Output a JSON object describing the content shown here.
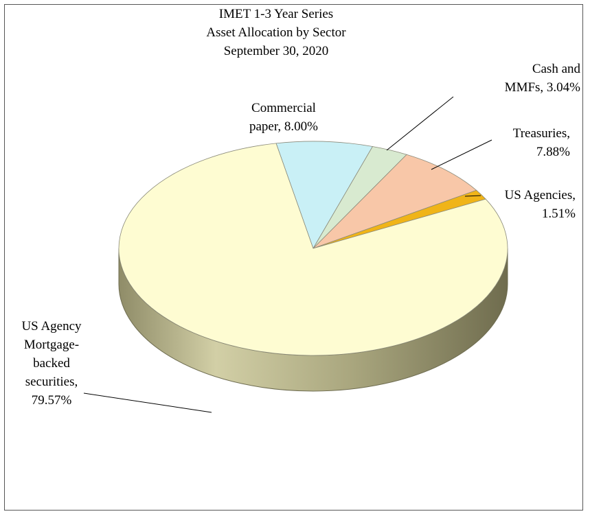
{
  "chart_data": {
    "type": "pie",
    "title_lines": [
      "IMET 1-3 Year Series",
      "Asset Allocation by Sector",
      "September 30, 2020"
    ],
    "slices": [
      {
        "name": "Commercial paper",
        "value": 8.0,
        "label_lines": [
          "Commercial",
          "paper, 8.00%"
        ],
        "color": "#c9f0f6"
      },
      {
        "name": "Cash and MMFs",
        "value": 3.04,
        "label_lines": [
          "Cash and",
          "MMFs, 3.04%"
        ],
        "color": "#d8ead0"
      },
      {
        "name": "Treasuries",
        "value": 7.88,
        "label_lines": [
          "Treasuries,",
          "7.88%"
        ],
        "color": "#f8c7a8"
      },
      {
        "name": "US Agencies",
        "value": 1.51,
        "label_lines": [
          "US Agencies,",
          "1.51%"
        ],
        "color": "#f0b418"
      },
      {
        "name": "US Agency Mortgage-backed securities",
        "value": 79.57,
        "label_lines": [
          "US Agency",
          "Mortgage-",
          "backed",
          "securities,",
          "79.57%"
        ],
        "color": "#fefcd2"
      }
    ],
    "side_color": "#b5b28a",
    "start_angle_deg": -101,
    "legend": "none",
    "style": "3d"
  }
}
